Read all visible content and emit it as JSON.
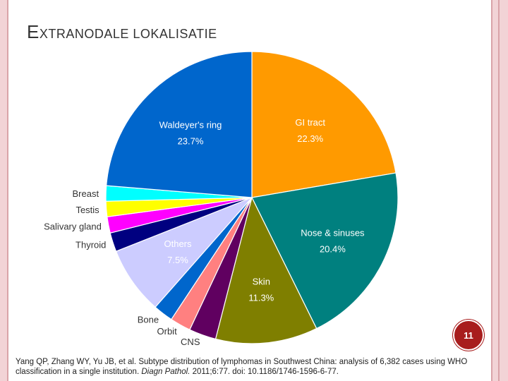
{
  "slide": {
    "title_initial": "E",
    "title_rest": "XTRANODALE LOKALISATIE",
    "page_number": "11",
    "citation_before": "Yang QP, Zhang WY, Yu JB, et al. Subtype distribution of lymphomas in Southwest China: analysis of 6,382 cases using WHO classification in a single institution. ",
    "citation_journal": "Diagn Pathol.",
    "citation_after": " 2011;6:77. doi: 10.1186/1746-1596-6-77.",
    "accent_color": "#a81d1d",
    "frame_color": "#f2d3d6"
  },
  "chart_data": {
    "type": "pie",
    "start": "12 o'clock, clockwise",
    "slices": [
      {
        "label": "GI tract",
        "value": 22.3,
        "value_label": "22.3%",
        "color": "#ff9a00",
        "label_placement": "inside"
      },
      {
        "label": "Nose & sinuses",
        "value": 20.4,
        "value_label": "20.4%",
        "color": "#00807f",
        "label_placement": "inside"
      },
      {
        "label": "Skin",
        "value": 11.3,
        "value_label": "11.3%",
        "color": "#7f7f00",
        "label_placement": "inside"
      },
      {
        "label": "CNS",
        "value": 3.0,
        "color": "#600060",
        "label_placement": "outside"
      },
      {
        "label": "Orbit",
        "value": 2.3,
        "color": "#ff8080",
        "label_placement": "outside"
      },
      {
        "label": "Bone",
        "value": 2.2,
        "color": "#0066cc",
        "label_placement": "outside"
      },
      {
        "label": "Others",
        "value": 7.5,
        "value_label": "7.5%",
        "color": "#ccccff",
        "label_placement": "inside"
      },
      {
        "label": "Thyroid",
        "value": 2.1,
        "color": "#000080",
        "label_placement": "outside"
      },
      {
        "label": "Salivary gland",
        "value": 1.8,
        "color": "#ff00ff",
        "label_placement": "outside"
      },
      {
        "label": "Testis",
        "value": 1.7,
        "color": "#ffff00",
        "label_placement": "outside"
      },
      {
        "label": "Breast",
        "value": 1.7,
        "color": "#00ffff",
        "label_placement": "outside"
      },
      {
        "label": "Waldeyer's ring",
        "value": 23.7,
        "value_label": "23.7%",
        "color": "#0066cc",
        "label_placement": "inside"
      }
    ]
  }
}
